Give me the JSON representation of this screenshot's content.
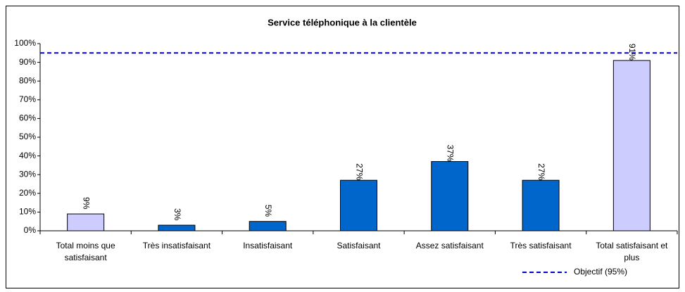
{
  "chart_data": {
    "type": "bar",
    "title": "Service téléphonique à la clientèle",
    "categories": [
      "Total moins que satisfaisant",
      "Très insatisfaisant",
      "Insatisfaisant",
      "Satisfaisant",
      "Assez satisfaisant",
      "Très satisfaisant",
      "Total satisfaisant et plus"
    ],
    "values": [
      9,
      3,
      5,
      27,
      37,
      27,
      91
    ],
    "value_labels": [
      "9%",
      "3%",
      "5%",
      "27%",
      "37%",
      "27%",
      "91%"
    ],
    "colors": [
      "#ccccff",
      "#0066cc",
      "#0066cc",
      "#0066cc",
      "#0066cc",
      "#0066cc",
      "#ccccff"
    ],
    "ylim": [
      0,
      100
    ],
    "yticks": [
      {
        "value": 0,
        "label": "0%"
      },
      {
        "value": 10,
        "label": "10%"
      },
      {
        "value": 20,
        "label": "20%"
      },
      {
        "value": 30,
        "label": "30%"
      },
      {
        "value": 40,
        "label": "40%"
      },
      {
        "value": 50,
        "label": "50%"
      },
      {
        "value": 60,
        "label": "60%"
      },
      {
        "value": 70,
        "label": "70%"
      },
      {
        "value": 80,
        "label": "80%"
      },
      {
        "value": 90,
        "label": "90%"
      },
      {
        "value": 100,
        "label": "100%"
      }
    ],
    "target": {
      "name": "Objectif (95%)",
      "value": 95,
      "color": "#0000cc"
    },
    "grid": false
  }
}
